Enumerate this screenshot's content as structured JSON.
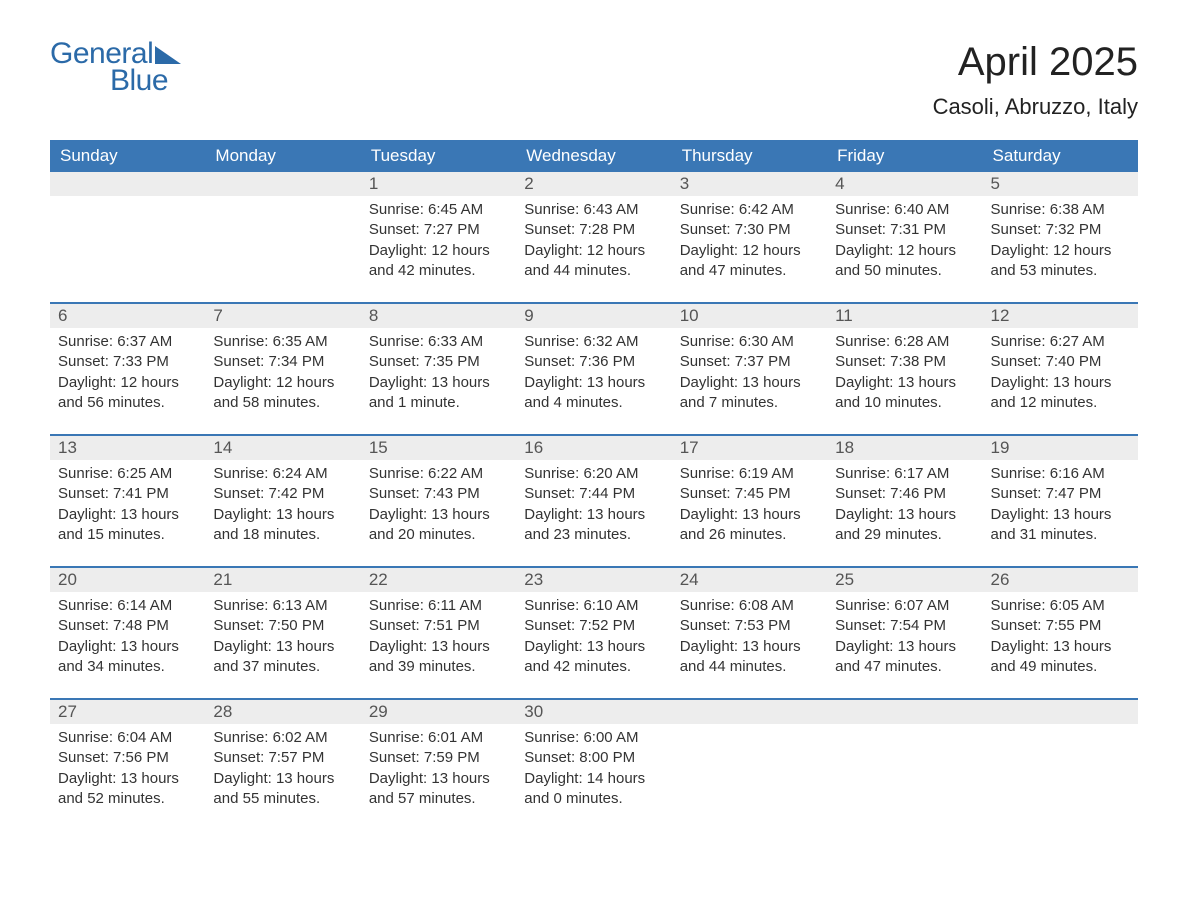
{
  "logo": {
    "text1": "General",
    "text2": "Blue"
  },
  "title": "April 2025",
  "location": "Casoli, Abruzzo, Italy",
  "colors": {
    "header_bg": "#3a77b5",
    "header_text": "#ffffff",
    "daynum_bg": "#ededed",
    "daynum_text": "#555555",
    "body_text": "#333333",
    "logo_color": "#2b6aa8",
    "week_border": "#3a77b5",
    "background": "#ffffff"
  },
  "typography": {
    "title_fontsize": 40,
    "location_fontsize": 22,
    "weekday_fontsize": 17,
    "daynum_fontsize": 17,
    "body_fontsize": 15,
    "logo_fontsize": 30
  },
  "weekdays": [
    "Sunday",
    "Monday",
    "Tuesday",
    "Wednesday",
    "Thursday",
    "Friday",
    "Saturday"
  ],
  "weeks": [
    [
      {
        "day": ""
      },
      {
        "day": ""
      },
      {
        "day": "1",
        "sunrise": "Sunrise: 6:45 AM",
        "sunset": "Sunset: 7:27 PM",
        "daylight1": "Daylight: 12 hours",
        "daylight2": "and 42 minutes."
      },
      {
        "day": "2",
        "sunrise": "Sunrise: 6:43 AM",
        "sunset": "Sunset: 7:28 PM",
        "daylight1": "Daylight: 12 hours",
        "daylight2": "and 44 minutes."
      },
      {
        "day": "3",
        "sunrise": "Sunrise: 6:42 AM",
        "sunset": "Sunset: 7:30 PM",
        "daylight1": "Daylight: 12 hours",
        "daylight2": "and 47 minutes."
      },
      {
        "day": "4",
        "sunrise": "Sunrise: 6:40 AM",
        "sunset": "Sunset: 7:31 PM",
        "daylight1": "Daylight: 12 hours",
        "daylight2": "and 50 minutes."
      },
      {
        "day": "5",
        "sunrise": "Sunrise: 6:38 AM",
        "sunset": "Sunset: 7:32 PM",
        "daylight1": "Daylight: 12 hours",
        "daylight2": "and 53 minutes."
      }
    ],
    [
      {
        "day": "6",
        "sunrise": "Sunrise: 6:37 AM",
        "sunset": "Sunset: 7:33 PM",
        "daylight1": "Daylight: 12 hours",
        "daylight2": "and 56 minutes."
      },
      {
        "day": "7",
        "sunrise": "Sunrise: 6:35 AM",
        "sunset": "Sunset: 7:34 PM",
        "daylight1": "Daylight: 12 hours",
        "daylight2": "and 58 minutes."
      },
      {
        "day": "8",
        "sunrise": "Sunrise: 6:33 AM",
        "sunset": "Sunset: 7:35 PM",
        "daylight1": "Daylight: 13 hours",
        "daylight2": "and 1 minute."
      },
      {
        "day": "9",
        "sunrise": "Sunrise: 6:32 AM",
        "sunset": "Sunset: 7:36 PM",
        "daylight1": "Daylight: 13 hours",
        "daylight2": "and 4 minutes."
      },
      {
        "day": "10",
        "sunrise": "Sunrise: 6:30 AM",
        "sunset": "Sunset: 7:37 PM",
        "daylight1": "Daylight: 13 hours",
        "daylight2": "and 7 minutes."
      },
      {
        "day": "11",
        "sunrise": "Sunrise: 6:28 AM",
        "sunset": "Sunset: 7:38 PM",
        "daylight1": "Daylight: 13 hours",
        "daylight2": "and 10 minutes."
      },
      {
        "day": "12",
        "sunrise": "Sunrise: 6:27 AM",
        "sunset": "Sunset: 7:40 PM",
        "daylight1": "Daylight: 13 hours",
        "daylight2": "and 12 minutes."
      }
    ],
    [
      {
        "day": "13",
        "sunrise": "Sunrise: 6:25 AM",
        "sunset": "Sunset: 7:41 PM",
        "daylight1": "Daylight: 13 hours",
        "daylight2": "and 15 minutes."
      },
      {
        "day": "14",
        "sunrise": "Sunrise: 6:24 AM",
        "sunset": "Sunset: 7:42 PM",
        "daylight1": "Daylight: 13 hours",
        "daylight2": "and 18 minutes."
      },
      {
        "day": "15",
        "sunrise": "Sunrise: 6:22 AM",
        "sunset": "Sunset: 7:43 PM",
        "daylight1": "Daylight: 13 hours",
        "daylight2": "and 20 minutes."
      },
      {
        "day": "16",
        "sunrise": "Sunrise: 6:20 AM",
        "sunset": "Sunset: 7:44 PM",
        "daylight1": "Daylight: 13 hours",
        "daylight2": "and 23 minutes."
      },
      {
        "day": "17",
        "sunrise": "Sunrise: 6:19 AM",
        "sunset": "Sunset: 7:45 PM",
        "daylight1": "Daylight: 13 hours",
        "daylight2": "and 26 minutes."
      },
      {
        "day": "18",
        "sunrise": "Sunrise: 6:17 AM",
        "sunset": "Sunset: 7:46 PM",
        "daylight1": "Daylight: 13 hours",
        "daylight2": "and 29 minutes."
      },
      {
        "day": "19",
        "sunrise": "Sunrise: 6:16 AM",
        "sunset": "Sunset: 7:47 PM",
        "daylight1": "Daylight: 13 hours",
        "daylight2": "and 31 minutes."
      }
    ],
    [
      {
        "day": "20",
        "sunrise": "Sunrise: 6:14 AM",
        "sunset": "Sunset: 7:48 PM",
        "daylight1": "Daylight: 13 hours",
        "daylight2": "and 34 minutes."
      },
      {
        "day": "21",
        "sunrise": "Sunrise: 6:13 AM",
        "sunset": "Sunset: 7:50 PM",
        "daylight1": "Daylight: 13 hours",
        "daylight2": "and 37 minutes."
      },
      {
        "day": "22",
        "sunrise": "Sunrise: 6:11 AM",
        "sunset": "Sunset: 7:51 PM",
        "daylight1": "Daylight: 13 hours",
        "daylight2": "and 39 minutes."
      },
      {
        "day": "23",
        "sunrise": "Sunrise: 6:10 AM",
        "sunset": "Sunset: 7:52 PM",
        "daylight1": "Daylight: 13 hours",
        "daylight2": "and 42 minutes."
      },
      {
        "day": "24",
        "sunrise": "Sunrise: 6:08 AM",
        "sunset": "Sunset: 7:53 PM",
        "daylight1": "Daylight: 13 hours",
        "daylight2": "and 44 minutes."
      },
      {
        "day": "25",
        "sunrise": "Sunrise: 6:07 AM",
        "sunset": "Sunset: 7:54 PM",
        "daylight1": "Daylight: 13 hours",
        "daylight2": "and 47 minutes."
      },
      {
        "day": "26",
        "sunrise": "Sunrise: 6:05 AM",
        "sunset": "Sunset: 7:55 PM",
        "daylight1": "Daylight: 13 hours",
        "daylight2": "and 49 minutes."
      }
    ],
    [
      {
        "day": "27",
        "sunrise": "Sunrise: 6:04 AM",
        "sunset": "Sunset: 7:56 PM",
        "daylight1": "Daylight: 13 hours",
        "daylight2": "and 52 minutes."
      },
      {
        "day": "28",
        "sunrise": "Sunrise: 6:02 AM",
        "sunset": "Sunset: 7:57 PM",
        "daylight1": "Daylight: 13 hours",
        "daylight2": "and 55 minutes."
      },
      {
        "day": "29",
        "sunrise": "Sunrise: 6:01 AM",
        "sunset": "Sunset: 7:59 PM",
        "daylight1": "Daylight: 13 hours",
        "daylight2": "and 57 minutes."
      },
      {
        "day": "30",
        "sunrise": "Sunrise: 6:00 AM",
        "sunset": "Sunset: 8:00 PM",
        "daylight1": "Daylight: 14 hours",
        "daylight2": "and 0 minutes."
      },
      {
        "day": ""
      },
      {
        "day": ""
      },
      {
        "day": ""
      }
    ]
  ]
}
